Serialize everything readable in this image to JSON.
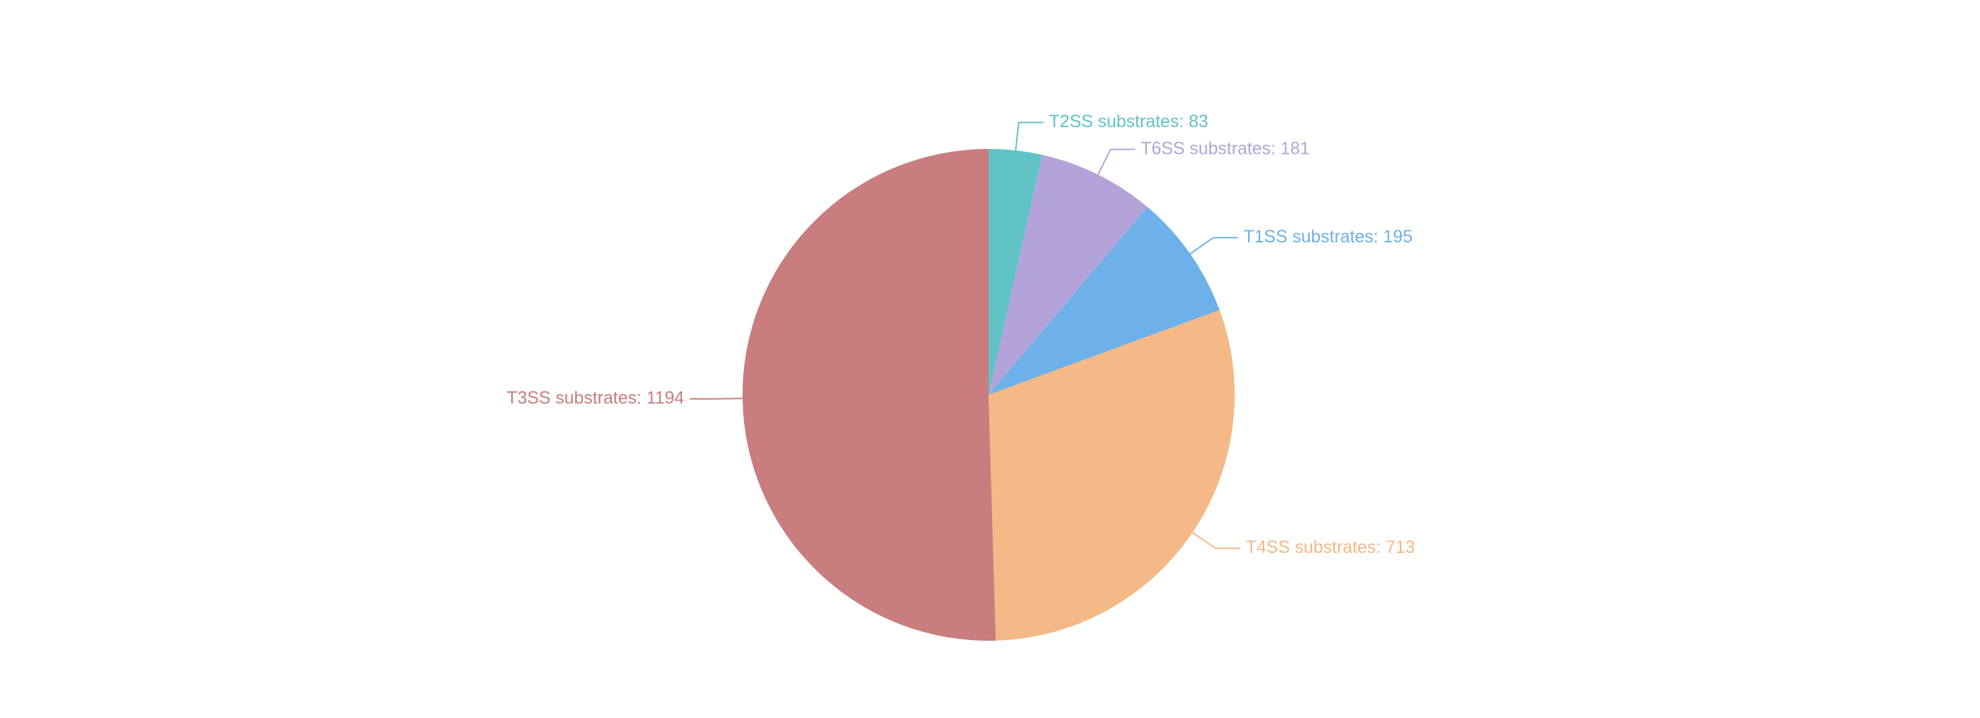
{
  "chart_data": {
    "type": "pie",
    "categories": [
      "T2SS substrates: 83",
      "T6SS substrates: 181",
      "T1SS substrates: 195",
      "T4SS substrates: 713",
      "T3SS substrates: 1194"
    ],
    "values": [
      83,
      181,
      195,
      713,
      1194
    ],
    "colors": [
      "#61c2c6",
      "#b3a3d9",
      "#6eb0ea",
      "#f4b987",
      "#c97d7e"
    ]
  }
}
